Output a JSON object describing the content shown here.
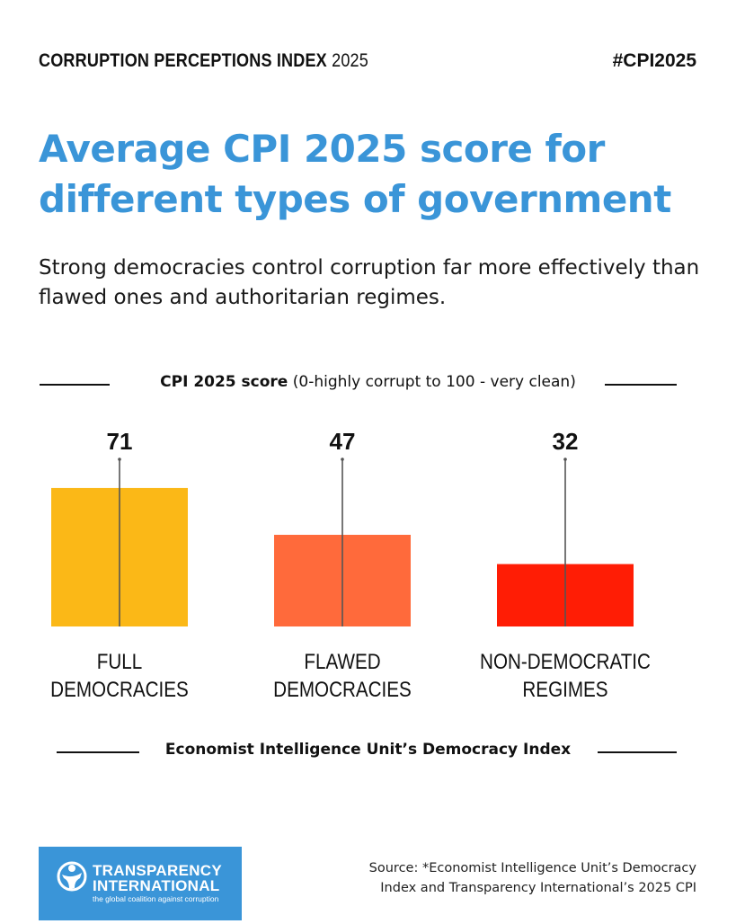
{
  "header": {
    "left_bold": "CORRUPTION PERCEPTIONS INDEX",
    "left_year": "2025",
    "hashtag": "#CPI2025"
  },
  "title": "Average CPI 2025 score for different types of government",
  "subtitle": "Strong democracies control corruption far more effectively than flawed ones and authoritarian regimes.",
  "chart_data": {
    "type": "bar",
    "title": "",
    "ylabel_bold": "CPI 2025 score",
    "ylabel_rest": "(0-highly corrupt to 100 - very clean)",
    "xlabel": "Economist Intelligence Unit’s Democracy Index",
    "categories": [
      [
        "FULL",
        "DEMOCRACIES"
      ],
      [
        "FLAWED",
        "DEMOCRACIES"
      ],
      [
        "NON-DEMOCRATIC",
        "REGIMES"
      ]
    ],
    "values": [
      71,
      47,
      32
    ],
    "colors": [
      "#fbb817",
      "#ff6a3b",
      "#ff1d05"
    ],
    "ylim": [
      0,
      100
    ],
    "grid": false
  },
  "logo": {
    "line1": "TRANSPARENCY",
    "line2": "INTERNATIONAL",
    "tagline": "the global coalition against corruption",
    "bg": "#3a95d8"
  },
  "source": "Source: *Economist Intelligence Unit’s Democracy Index and Transparency International’s 2025 CPI"
}
